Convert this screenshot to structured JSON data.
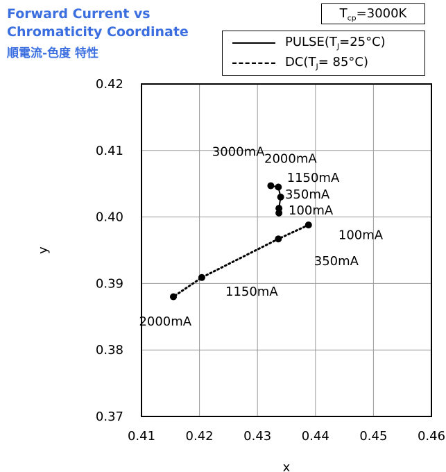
{
  "title_line1": "Forward Current vs",
  "title_line2": "Chromaticity Coordinate",
  "title_line3": "順電流-色度 特性",
  "condition": {
    "prefix": "T",
    "sub": "cp",
    "value": "=3000K"
  },
  "chart_data": {
    "type": "line",
    "xlabel": "x",
    "ylabel": "y",
    "xlim": [
      0.41,
      0.46
    ],
    "ylim": [
      0.37,
      0.42
    ],
    "xticks": [
      "0.41",
      "0.42",
      "0.43",
      "0.44",
      "0.45",
      "0.46"
    ],
    "yticks": [
      "0.37",
      "0.38",
      "0.39",
      "0.40",
      "0.41",
      "0.42"
    ],
    "grid": true,
    "legend_position": "top-right",
    "series": [
      {
        "name_parts": {
          "pre": "PULSE(T",
          "sub": "J",
          "post": "=25°C)"
        },
        "style": "solid",
        "points": [
          {
            "current": "100mA",
            "x": 0.4337,
            "y": 0.4006
          },
          {
            "current": "350mA",
            "x": 0.4337,
            "y": 0.4013
          },
          {
            "current": "1150mA",
            "x": 0.434,
            "y": 0.403
          },
          {
            "current": "2000mA",
            "x": 0.4336,
            "y": 0.4045
          },
          {
            "current": "3000mA",
            "x": 0.4323,
            "y": 0.4047
          }
        ]
      },
      {
        "name_parts": {
          "pre": "DC(T",
          "sub": "J",
          "post": "= 85°C)"
        },
        "style": "dotted",
        "points": [
          {
            "current": "100mA",
            "x": 0.4388,
            "y": 0.3988
          },
          {
            "current": "350mA",
            "x": 0.4336,
            "y": 0.3967
          },
          {
            "current": "1150mA",
            "x": 0.4204,
            "y": 0.3909
          },
          {
            "current": "2000mA",
            "x": 0.4155,
            "y": 0.388
          }
        ]
      }
    ],
    "annotations": [
      {
        "text": "3000mA",
        "x": 0.4267,
        "y": 0.4098
      },
      {
        "text": "2000mA",
        "x": 0.4357,
        "y": 0.4088
      },
      {
        "text": "1150mA",
        "x": 0.4396,
        "y": 0.4059
      },
      {
        "text": "350mA",
        "x": 0.4386,
        "y": 0.4034
      },
      {
        "text": "100mA",
        "x": 0.4392,
        "y": 0.401
      },
      {
        "text": "100mA",
        "x": 0.4478,
        "y": 0.3973
      },
      {
        "text": "350mA",
        "x": 0.4436,
        "y": 0.3934
      },
      {
        "text": "1150mA",
        "x": 0.429,
        "y": 0.3888
      },
      {
        "text": "2000mA",
        "x": 0.4141,
        "y": 0.3843
      }
    ]
  }
}
